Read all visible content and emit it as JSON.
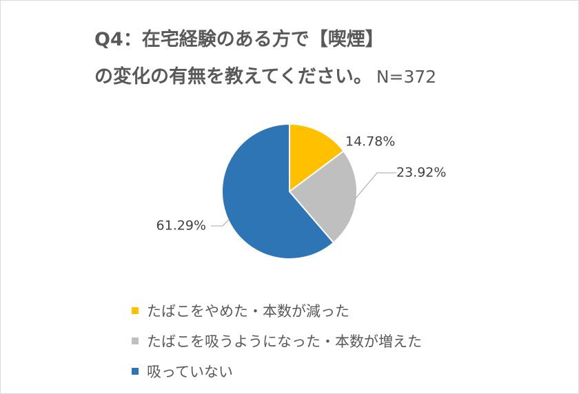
{
  "title": {
    "line1": "Q4：在宅経験のある方で【喫煙】",
    "line2": "の変化の有無を教えてください。",
    "n_label": "N=372"
  },
  "chart_data": {
    "type": "pie",
    "title": "Q4：在宅経験のある方で【喫煙】の変化の有無を教えてください。 N=372",
    "categories": [
      "たばこをやめた・本数が減った",
      "たばこを吸うようになった・本数が増えた",
      "吸っていない"
    ],
    "values": [
      14.78,
      23.92,
      61.29
    ],
    "labels": [
      "14.78%",
      "23.92%",
      "61.29%"
    ],
    "colors": [
      "#ffc000",
      "#bfbfbf",
      "#2e75b6"
    ],
    "legend_position": "bottom"
  },
  "legend": [
    {
      "label": "たばこをやめた・本数が減った",
      "color": "#ffc000"
    },
    {
      "label": "たばこを吸うようになった・本数が増えた",
      "color": "#bfbfbf"
    },
    {
      "label": "吸っていない",
      "color": "#2e75b6"
    }
  ]
}
